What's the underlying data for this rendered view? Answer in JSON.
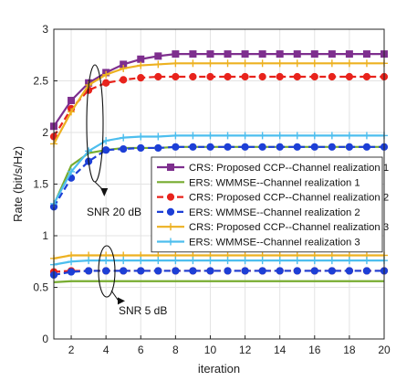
{
  "chart_data": {
    "type": "line",
    "xlabel": "iteration",
    "ylabel": "Rate (bit/s/Hz)",
    "xlim": [
      1,
      20
    ],
    "ylim": [
      0,
      3
    ],
    "xticks": [
      2,
      4,
      6,
      8,
      10,
      12,
      14,
      16,
      18,
      20
    ],
    "yticks": [
      0,
      0.5,
      1,
      1.5,
      2,
      2.5,
      3
    ],
    "grid": true,
    "legend_position": "middle-right",
    "x": [
      1,
      2,
      3,
      4,
      5,
      6,
      7,
      8,
      9,
      10,
      11,
      12,
      13,
      14,
      15,
      16,
      17,
      18,
      19,
      20
    ],
    "series": [
      {
        "name": "CRS: Proposed CCP--Channel realization 1",
        "color": "#7E2F8E",
        "marker": "square",
        "dash": "solid",
        "values_snr20": [
          2.06,
          2.31,
          2.48,
          2.58,
          2.66,
          2.71,
          2.74,
          2.76,
          2.76,
          2.76,
          2.76,
          2.76,
          2.76,
          2.76,
          2.76,
          2.76,
          2.76,
          2.76,
          2.76,
          2.76
        ],
        "values_snr5": []
      },
      {
        "name": "ERS: WMMSE--Channel realization 1",
        "color": "#77AC30",
        "marker": "none",
        "dash": "solid",
        "values_snr20": [
          1.3,
          1.68,
          1.8,
          1.83,
          1.85,
          1.85,
          1.85,
          1.86,
          1.86,
          1.86,
          1.86,
          1.86,
          1.86,
          1.86,
          1.86,
          1.86,
          1.86,
          1.86,
          1.86,
          1.86
        ],
        "values_snr5": [
          0.55,
          0.56,
          0.56,
          0.56,
          0.56,
          0.56,
          0.56,
          0.56,
          0.56,
          0.56,
          0.56,
          0.56,
          0.56,
          0.56,
          0.56,
          0.56,
          0.56,
          0.56,
          0.56,
          0.56
        ]
      },
      {
        "name": "CRS: Proposed CCP--Channel realization 2",
        "color": "#E8231C",
        "marker": "circle",
        "dash": "dashed",
        "values_snr20": [
          1.96,
          2.23,
          2.41,
          2.48,
          2.51,
          2.53,
          2.54,
          2.54,
          2.54,
          2.54,
          2.54,
          2.54,
          2.54,
          2.54,
          2.54,
          2.54,
          2.54,
          2.54,
          2.54,
          2.54
        ],
        "values_snr5": [
          0.65,
          0.66,
          0.66,
          0.66,
          0.66,
          0.66,
          0.66,
          0.66,
          0.66,
          0.66,
          0.66,
          0.66,
          0.66,
          0.66,
          0.66,
          0.66,
          0.66,
          0.66,
          0.66,
          0.66
        ]
      },
      {
        "name": "ERS: WMMSE--Channel realization 2",
        "color": "#1D3FD6",
        "marker": "circle",
        "dash": "dashed",
        "values_snr20": [
          1.28,
          1.56,
          1.72,
          1.83,
          1.84,
          1.85,
          1.85,
          1.86,
          1.86,
          1.86,
          1.86,
          1.86,
          1.86,
          1.86,
          1.86,
          1.86,
          1.86,
          1.86,
          1.86,
          1.86
        ],
        "values_snr5": [
          0.62,
          0.65,
          0.66,
          0.66,
          0.66,
          0.66,
          0.66,
          0.66,
          0.66,
          0.66,
          0.66,
          0.66,
          0.66,
          0.66,
          0.66,
          0.66,
          0.66,
          0.66,
          0.66,
          0.66
        ]
      },
      {
        "name": "CRS: Proposed CCP--Channel realization 3",
        "color": "#EDB120",
        "marker": "plus",
        "dash": "solid",
        "values_snr20": [
          1.89,
          2.2,
          2.46,
          2.56,
          2.62,
          2.65,
          2.66,
          2.67,
          2.67,
          2.67,
          2.67,
          2.67,
          2.67,
          2.67,
          2.67,
          2.67,
          2.67,
          2.67,
          2.67,
          2.67
        ],
        "values_snr5": [
          0.78,
          0.81,
          0.81,
          0.81,
          0.81,
          0.81,
          0.81,
          0.81,
          0.81,
          0.81,
          0.81,
          0.81,
          0.81,
          0.81,
          0.81,
          0.81,
          0.81,
          0.81,
          0.81,
          0.81
        ]
      },
      {
        "name": "ERS: WMMSE--Channel realization 3",
        "color": "#4DBEEE",
        "marker": "plus",
        "dash": "solid",
        "values_snr20": [
          1.31,
          1.62,
          1.82,
          1.92,
          1.95,
          1.96,
          1.96,
          1.97,
          1.97,
          1.97,
          1.97,
          1.97,
          1.97,
          1.97,
          1.97,
          1.97,
          1.97,
          1.97,
          1.97,
          1.97
        ],
        "values_snr5": [
          0.72,
          0.75,
          0.76,
          0.76,
          0.76,
          0.76,
          0.76,
          0.76,
          0.76,
          0.76,
          0.76,
          0.76,
          0.76,
          0.76,
          0.76,
          0.76,
          0.76,
          0.76,
          0.76,
          0.76
        ]
      }
    ],
    "annotations": [
      {
        "text": "SNR 20 dB",
        "points_at": {
          "x": 3.9,
          "y": 1.38
        }
      },
      {
        "text": "SNR 5 dB",
        "points_at": {
          "x": 4.2,
          "y": 0.36
        }
      }
    ]
  }
}
